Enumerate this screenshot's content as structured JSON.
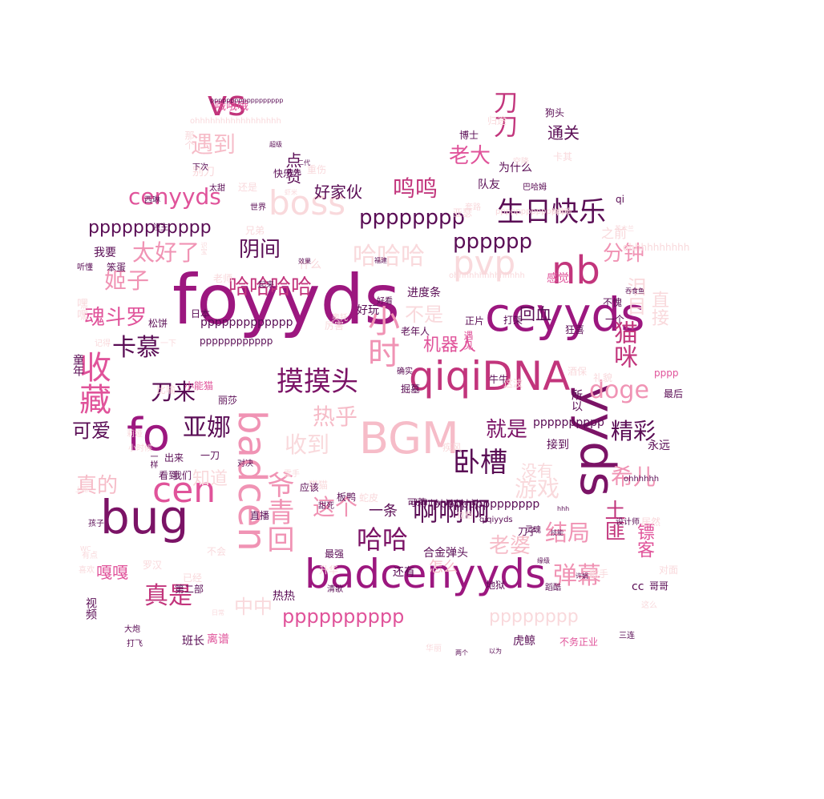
{
  "palette": [
    "#7b1366",
    "#9c177f",
    "#c2357c",
    "#e0539a",
    "#f093b4",
    "#f6bcc8",
    "#f9d9dc",
    "#fce8ea",
    "#5a0d55"
  ],
  "words": [
    {
      "text": "foyyds",
      "c": 1
    },
    {
      "text": "badcenyyds",
      "c": 1
    },
    {
      "text": "ccyyds",
      "c": 1
    },
    {
      "text": "bug",
      "c": 0
    },
    {
      "text": "BGM",
      "c": 5
    },
    {
      "text": "qiqiDNA",
      "c": 2
    },
    {
      "text": "boss",
      "c": 6
    },
    {
      "text": "yyds",
      "c": 0
    },
    {
      "text": "nb",
      "c": 2
    },
    {
      "text": "pvp",
      "c": 6
    },
    {
      "text": "fo",
      "c": 1
    },
    {
      "text": "cen",
      "c": 3
    },
    {
      "text": "badcen",
      "c": 4
    },
    {
      "text": "vs",
      "c": 2
    },
    {
      "text": "卧槽",
      "c": 8
    },
    {
      "text": "生日快乐",
      "c": 8
    },
    {
      "text": "摸摸头",
      "c": 0
    },
    {
      "text": "啊啊啊",
      "c": 8
    },
    {
      "text": "哈哈哈哈",
      "c": 2
    },
    {
      "text": "哈哈哈",
      "c": 6
    },
    {
      "text": "哈哈",
      "c": 0
    },
    {
      "text": "爷青回",
      "c": 4
    },
    {
      "text": "收藏",
      "c": 3
    },
    {
      "text": "猫咪",
      "c": 2
    },
    {
      "text": "pppppppp",
      "c": 8
    },
    {
      "text": "pppppp",
      "c": 8
    },
    {
      "text": "ppppppppppp",
      "c": 8
    },
    {
      "text": "pppppppppp",
      "c": 3
    },
    {
      "text": "pppppppp",
      "c": 6
    },
    {
      "text": "cenyyds",
      "c": 3
    },
    {
      "text": "doge",
      "c": 4
    },
    {
      "text": "卡慕",
      "c": 8
    },
    {
      "text": "精彩",
      "c": 8
    },
    {
      "text": "希儿",
      "c": 4
    },
    {
      "text": "弹幕",
      "c": 4
    },
    {
      "text": "结局",
      "c": 4
    },
    {
      "text": "真是",
      "c": 2
    },
    {
      "text": "亚娜",
      "c": 8
    },
    {
      "text": "刀来",
      "c": 8
    },
    {
      "text": "鸣鸣",
      "c": 2
    },
    {
      "text": "太好了",
      "c": 4
    },
    {
      "text": "姬子",
      "c": 4
    },
    {
      "text": "魂斗罗",
      "c": 3
    },
    {
      "text": "可爱",
      "c": 8
    },
    {
      "text": "真的",
      "c": 5
    },
    {
      "text": "遇到",
      "c": 5
    },
    {
      "text": "老大",
      "c": 3
    },
    {
      "text": "就是",
      "c": 0
    },
    {
      "text": "这个",
      "c": 4
    },
    {
      "text": "游戏",
      "c": 6
    },
    {
      "text": "老婆",
      "c": 5
    },
    {
      "text": "热乎",
      "c": 5
    },
    {
      "text": "收到",
      "c": 6
    },
    {
      "text": "分钟",
      "c": 4
    },
    {
      "text": "泪目",
      "c": 6
    },
    {
      "text": "直接",
      "c": 6
    },
    {
      "text": "阴间",
      "c": 8
    },
    {
      "text": "不是",
      "c": 6
    },
    {
      "text": "机器人",
      "c": 3
    },
    {
      "text": "回血",
      "c": 8
    },
    {
      "text": "好家伙",
      "c": 8
    },
    {
      "text": "通关",
      "c": 8
    },
    {
      "text": "一条",
      "c": 8
    },
    {
      "text": "中中",
      "c": 6
    },
    {
      "text": "嘎嘎",
      "c": 3
    },
    {
      "text": "知道",
      "c": 6
    },
    {
      "text": "点赞",
      "c": 8
    },
    {
      "text": "小时",
      "c": 4
    },
    {
      "text": "刀刀",
      "c": 2
    },
    {
      "text": "土匪",
      "c": 2
    },
    {
      "text": "镖客",
      "c": 3
    },
    {
      "text": "没有",
      "c": 6
    },
    {
      "text": "怎么",
      "c": 5
    },
    {
      "text": "ppppppppppppp",
      "c": 8
    },
    {
      "text": "pppppppppp",
      "c": 8
    },
    {
      "text": "ohhhhhhhhhh",
      "c": 6
    },
    {
      "text": "什么",
      "c": 6
    },
    {
      "text": "cc",
      "c": 8
    },
    {
      "text": "qi",
      "c": 8
    },
    {
      "text": "合金弹头",
      "c": 8
    },
    {
      "text": "还有",
      "c": 8
    },
    {
      "text": "进度条",
      "c": 8
    },
    {
      "text": "为什么",
      "c": 8
    },
    {
      "text": "永远",
      "c": 8
    },
    {
      "text": "pppp",
      "c": 3
    },
    {
      "text": "哦哦哦",
      "c": 3
    },
    {
      "text": "视频",
      "c": 8
    },
    {
      "text": "日本",
      "c": 8
    },
    {
      "text": "笨蛋",
      "c": 8
    },
    {
      "text": "我要",
      "c": 8
    },
    {
      "text": "直播",
      "c": 8
    },
    {
      "text": "遇见",
      "c": 3
    },
    {
      "text": "猫猫",
      "c": 6
    },
    {
      "text": "板鸭",
      "c": 8
    },
    {
      "text": "蛇皮",
      "c": 6
    },
    {
      "text": "热热",
      "c": 8
    },
    {
      "text": "虎鲸",
      "c": 8
    },
    {
      "text": "可莉",
      "c": 8
    },
    {
      "text": "第二部",
      "c": 8
    },
    {
      "text": "班长",
      "c": 8
    },
    {
      "text": "离谱",
      "c": 3
    },
    {
      "text": "不务正业",
      "c": 3
    },
    {
      "text": "哥哥",
      "c": 8
    },
    {
      "text": "三连",
      "c": 8
    },
    {
      "text": "队友",
      "c": 8
    },
    {
      "text": "狗头",
      "c": 8
    },
    {
      "text": "快乐",
      "c": 8
    },
    {
      "text": "接到",
      "c": 8
    },
    {
      "text": "牛牛",
      "c": 8
    },
    {
      "text": "疾风",
      "c": 6
    },
    {
      "text": "正片",
      "c": 8
    },
    {
      "text": "老年人",
      "c": 8
    },
    {
      "text": "感觉",
      "c": 3
    },
    {
      "text": "打架",
      "c": 8
    },
    {
      "text": "童年",
      "c": 8
    },
    {
      "text": "看到",
      "c": 8
    },
    {
      "text": "丽莎",
      "c": 8
    },
    {
      "text": "我们",
      "c": 8
    },
    {
      "text": "出来",
      "c": 8
    },
    {
      "text": "孩子",
      "c": 8
    },
    {
      "text": "升华",
      "c": 6
    },
    {
      "text": "最强",
      "c": 8
    },
    {
      "text": "小能猫",
      "c": 3
    },
    {
      "text": "西琳",
      "c": 8
    },
    {
      "text": "世界",
      "c": 8
    },
    {
      "text": "兄弟",
      "c": 6
    },
    {
      "text": "老师",
      "c": 6
    },
    {
      "text": "好看",
      "c": 8
    },
    {
      "text": "厉害",
      "c": 6
    },
    {
      "text": "礼貌",
      "c": 6
    },
    {
      "text": "最后",
      "c": 8
    },
    {
      "text": "酒保",
      "c": 6
    },
    {
      "text": "狂喜",
      "c": 8
    },
    {
      "text": "一个",
      "c": 8
    },
    {
      "text": "不愧",
      "c": 8
    },
    {
      "text": "设计师",
      "c": 8
    },
    {
      "text": "居然",
      "c": 6
    },
    {
      "text": "这么",
      "c": 6
    },
    {
      "text": "对面",
      "c": 6
    },
    {
      "text": "灵魂",
      "c": 8
    },
    {
      "text": "刀子",
      "c": 8
    },
    {
      "text": "地狱",
      "c": 8
    },
    {
      "text": "歌手",
      "c": 6
    },
    {
      "text": "卡其",
      "c": 6
    },
    {
      "text": "博士",
      "c": 8
    },
    {
      "text": "那个",
      "c": 6
    },
    {
      "text": "别刀",
      "c": 6
    },
    {
      "text": "重伤",
      "c": 6
    },
    {
      "text": "太甜",
      "c": 8
    },
    {
      "text": "下次",
      "c": 8
    },
    {
      "text": "起来",
      "c": 8
    },
    {
      "text": "ohhhhhh",
      "c": 8
    },
    {
      "text": "ohhhhhhhhhhhhhh",
      "c": 6
    },
    {
      "text": "ohhhhhhhhhhhhh",
      "c": 8
    },
    {
      "text": "pppppppppppp",
      "c": 8
    },
    {
      "text": "ppppppppppppppp",
      "c": 8
    },
    {
      "text": "ppppppppppppppp",
      "c": 6
    },
    {
      "text": "奥托",
      "c": 6
    },
    {
      "text": "亚瑟",
      "c": 6
    },
    {
      "text": "之前",
      "c": 6
    },
    {
      "text": "所以",
      "c": 8
    },
    {
      "text": "还是",
      "c": 6
    },
    {
      "text": "记得",
      "c": 6
    },
    {
      "text": "一下",
      "c": 6
    },
    {
      "text": "小时候",
      "c": 6
    },
    {
      "text": "一刀",
      "c": 8
    },
    {
      "text": "对决",
      "c": 8
    },
    {
      "text": "应该",
      "c": 8
    },
    {
      "text": "甜死",
      "c": 8
    },
    {
      "text": "拉格",
      "c": 6
    },
    {
      "text": "归途",
      "c": 6
    },
    {
      "text": "空降",
      "c": 6
    },
    {
      "text": "这波",
      "c": 6
    },
    {
      "text": "掘墓",
      "c": 8
    },
    {
      "text": "确实",
      "c": 8
    },
    {
      "text": "松饼",
      "c": 8
    },
    {
      "text": "听懂",
      "c": 8
    },
    {
      "text": "嘿嘿",
      "c": 6
    },
    {
      "text": "比喻",
      "c": 6
    },
    {
      "text": "已经",
      "c": 6
    },
    {
      "text": "喜欢",
      "c": 6
    },
    {
      "text": "有点",
      "c": 6
    },
    {
      "text": "不会",
      "c": 6
    },
    {
      "text": "清歌",
      "c": 8
    },
    {
      "text": "一样",
      "c": 8
    },
    {
      "text": "莉娅",
      "c": 6
    },
    {
      "text": "罗汉",
      "c": 6
    },
    {
      "text": "好玩",
      "c": 8
    },
    {
      "text": "巴哈姆",
      "c": 8
    },
    {
      "text": "花木兰",
      "c": 6
    },
    {
      "text": "哈哈哈",
      "c": 6
    },
    {
      "text": "套路",
      "c": 6
    },
    {
      "text": "吞食鱼",
      "c": 8
    },
    {
      "text": "qiqiyyds",
      "c": 8
    },
    {
      "text": "pppppppppppppppppp",
      "c": 8
    },
    {
      "text": "ohhhhhhhhhhhhhhhhh",
      "c": 6
    },
    {
      "text": "超级",
      "c": 8
    },
    {
      "text": "虾米",
      "c": 6
    },
    {
      "text": "效果",
      "c": 8
    },
    {
      "text": "识宝",
      "c": 6
    },
    {
      "text": "福建",
      "c": 8
    },
    {
      "text": "领主",
      "c": 8
    },
    {
      "text": "大炮",
      "c": 8
    },
    {
      "text": "打飞",
      "c": 8
    },
    {
      "text": "两个",
      "c": 8
    },
    {
      "text": "华丽",
      "c": 6
    },
    {
      "text": "以为",
      "c": 8
    },
    {
      "text": "蹈酷",
      "c": 8
    },
    {
      "text": "技能",
      "c": 8
    },
    {
      "text": "许娟",
      "c": 8
    },
    {
      "text": "缘级",
      "c": 8
    },
    {
      "text": "hhh",
      "c": 8
    },
    {
      "text": "二代",
      "c": 8
    },
    {
      "text": "雷手",
      "c": 6
    },
    {
      "text": "日常",
      "c": 6
    },
    {
      "text": "上路",
      "c": 6
    },
    {
      "text": "WC",
      "c": 6
    },
    {
      "text": "无敌",
      "c": 6
    },
    {
      "text": "生日",
      "c": 8
    },
    {
      "text": "我玩过",
      "c": 8
    },
    {
      "text": "吼吼",
      "c": 8
    }
  ]
}
